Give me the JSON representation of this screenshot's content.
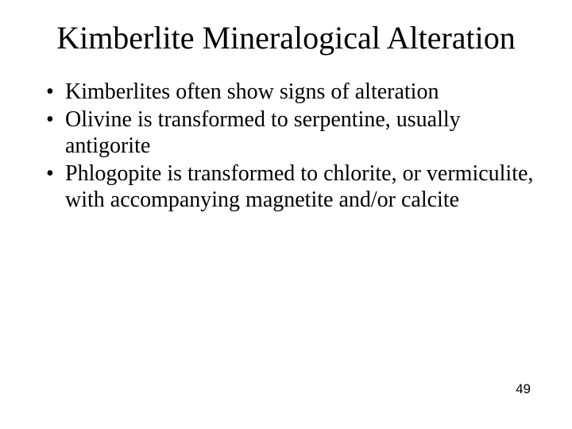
{
  "slide": {
    "title": "Kimberlite Mineralogical Alteration",
    "bullets": [
      "Kimberlites often show signs of alteration",
      "Olivine is transformed to serpentine, usually antigorite",
      "Phlogopite is transformed to chlorite, or vermiculite, with accompanying magnetite and/or calcite"
    ],
    "page_number": "49",
    "styling": {
      "background_color": "#ffffff",
      "title_color": "#000000",
      "title_fontsize": 40,
      "title_font": "Times New Roman",
      "title_weight": "normal",
      "bullet_color": "#000000",
      "bullet_fontsize": 28,
      "bullet_font": "Times New Roman",
      "page_number_fontsize": 17,
      "page_number_font": "Arial",
      "page_number_color": "#000000"
    }
  }
}
